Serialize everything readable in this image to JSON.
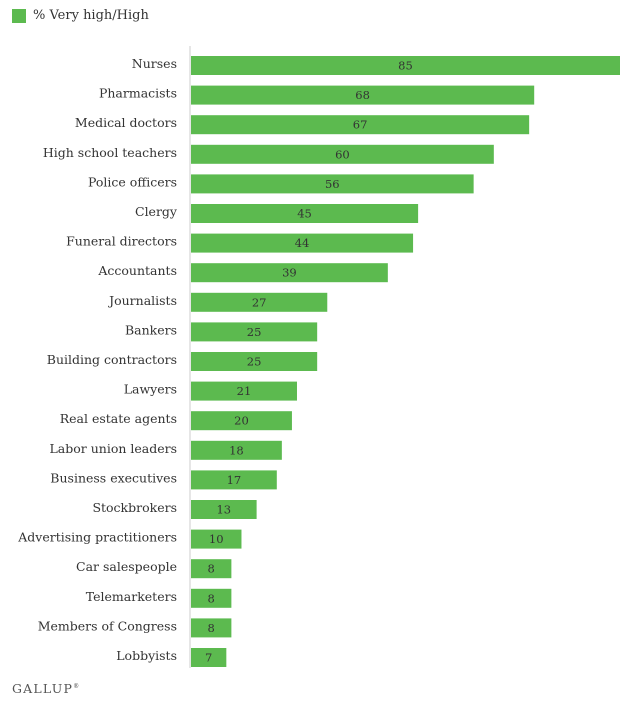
{
  "legend": {
    "label": "% Very high/High",
    "color": "#5cba4f"
  },
  "brand": {
    "name": "GALLUP",
    "mark": "®"
  },
  "chart_data": {
    "type": "bar",
    "orientation": "horizontal",
    "categories": [
      "Nurses",
      "Pharmacists",
      "Medical doctors",
      "High school teachers",
      "Police officers",
      "Clergy",
      "Funeral directors",
      "Accountants",
      "Journalists",
      "Bankers",
      "Building contractors",
      "Lawyers",
      "Real estate agents",
      "Labor union leaders",
      "Business executives",
      "Stockbrokers",
      "Advertising practitioners",
      "Car salespeople",
      "Telemarketers",
      "Members of Congress",
      "Lobbyists"
    ],
    "series": [
      {
        "values": [
          85,
          68,
          67,
          60,
          56,
          45,
          44,
          39,
          27,
          25,
          25,
          21,
          20,
          18,
          17,
          13,
          10,
          8,
          8,
          8,
          7
        ]
      }
    ],
    "xlim": [
      0,
      85
    ],
    "grid": false,
    "legend_position": "top-left",
    "bar_color": "#5cba4f",
    "axis_color": "#cccccc"
  }
}
